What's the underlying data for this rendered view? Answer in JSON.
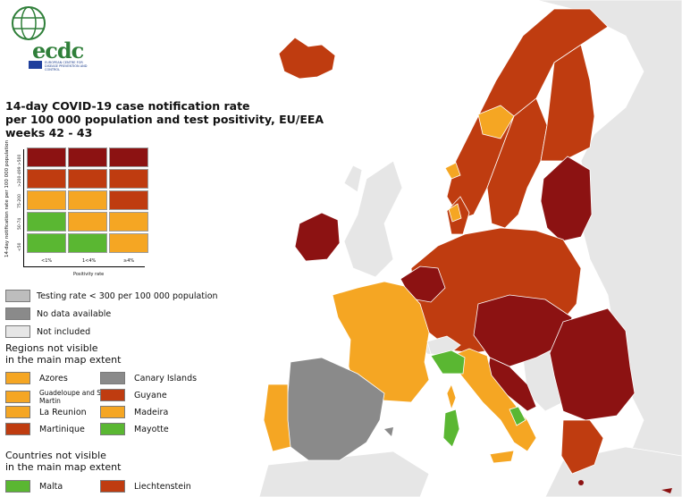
{
  "logo": {
    "text": "ecdc",
    "subtitle": "EUROPEAN CENTRE FOR DISEASE PREVENTION AND CONTROL"
  },
  "title": {
    "line1": "14-day COVID-19 case notification rate",
    "line2": "per 100 000 population and test positivity, EU/EEA",
    "line3": "weeks 42 - 43"
  },
  "colors": {
    "dark_red": "#8c1212",
    "red": "#bf3c10",
    "orange": "#f5a623",
    "green": "#5ab732",
    "grey_dark": "#8a8a8a",
    "grey_light": "#bdbdbd",
    "not_included": "#e6e6e6",
    "sea": "#ffffff"
  },
  "matrix": {
    "y_axis_label": "14-day notification rate per 100 000 population",
    "x_axis_label": "Positivity rate",
    "rows": [
      {
        "label": ">500",
        "cells": [
          "dark_red",
          "dark_red",
          "dark_red"
        ]
      },
      {
        "label": ">200-499",
        "cells": [
          "red",
          "red",
          "red"
        ]
      },
      {
        "label": "75-200",
        "cells": [
          "orange",
          "orange",
          "red"
        ]
      },
      {
        "label": "50-74",
        "cells": [
          "green",
          "orange",
          "orange"
        ]
      },
      {
        "label": "<50",
        "cells": [
          "green",
          "green",
          "orange"
        ]
      }
    ],
    "columns": [
      "<1%",
      "1<4%",
      "≥4%"
    ]
  },
  "legend": {
    "testing_rate": "Testing rate < 300 per 100 000 population",
    "no_data": "No data available",
    "not_included": "Not included",
    "regions_heading_1": "Regions not visible",
    "regions_heading_2": "in the main map extent",
    "regions": [
      {
        "name": "Azores",
        "color": "orange"
      },
      {
        "name": "Canary Islands",
        "color": "grey_dark"
      },
      {
        "name": "Guadeloupe and Saint Martin",
        "color": "orange"
      },
      {
        "name": "Guyane",
        "color": "red"
      },
      {
        "name": "La Reunion",
        "color": "orange"
      },
      {
        "name": "Madeira",
        "color": "orange"
      },
      {
        "name": "Martinique",
        "color": "red"
      },
      {
        "name": "Mayotte",
        "color": "green"
      }
    ],
    "countries_heading_1": "Countries not visible",
    "countries_heading_2": "in the main map extent",
    "countries": [
      {
        "name": "Malta",
        "color": "green"
      },
      {
        "name": "Liechtenstein",
        "color": "red"
      }
    ]
  }
}
